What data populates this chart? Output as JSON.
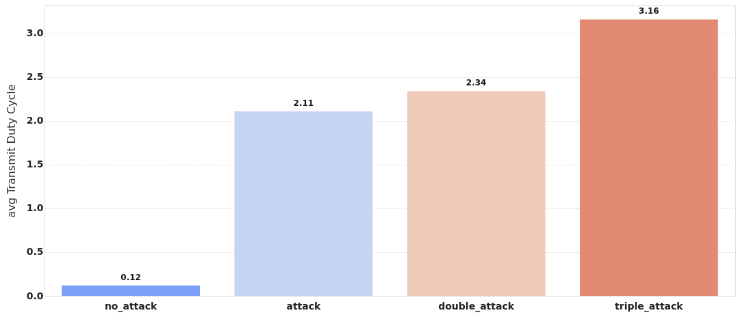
{
  "chart_data": {
    "type": "bar",
    "ylabel": "avg Transmit Duty Cycle",
    "categories": [
      "no_attack",
      "attack",
      "double_attack",
      "triple_attack"
    ],
    "values": [
      0.12,
      2.11,
      2.34,
      3.16
    ],
    "colors": [
      "#7b9ff9",
      "#c5d5f1",
      "#eecab8",
      "#e28b72"
    ],
    "ylim": [
      0,
      3.32
    ],
    "yticks": [
      {
        "value": 0,
        "label": "0.0"
      },
      {
        "value": 0.5,
        "label": "0.5"
      },
      {
        "value": 1,
        "label": "1.0"
      },
      {
        "value": 1.5,
        "label": "1.5"
      },
      {
        "value": 2,
        "label": "2.0"
      },
      {
        "value": 2.5,
        "label": "2.5"
      },
      {
        "value": 3,
        "label": "3.0"
      }
    ],
    "value_labels": [
      "0.12",
      "2.11",
      "2.34",
      "3.16"
    ],
    "grid": "y"
  }
}
